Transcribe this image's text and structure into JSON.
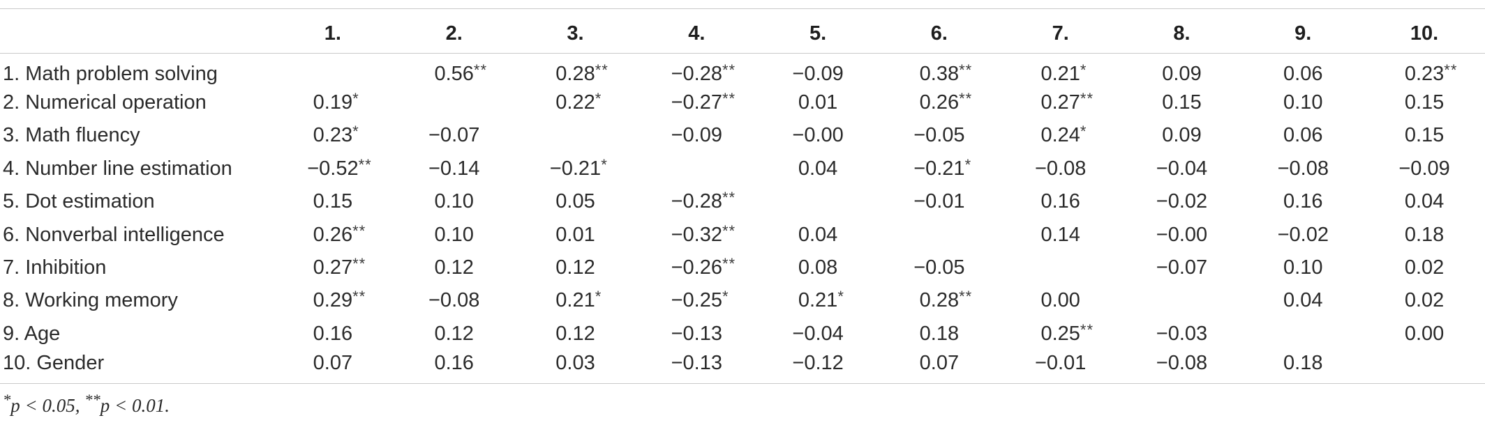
{
  "table": {
    "columns": [
      "1.",
      "2.",
      "3.",
      "4.",
      "5.",
      "6.",
      "7.",
      "8.",
      "9.",
      "10."
    ],
    "rows": [
      {
        "label": "1. Math problem solving",
        "cells": [
          {
            "v": "",
            "s": ""
          },
          {
            "v": "0.56",
            "s": "**"
          },
          {
            "v": "0.28",
            "s": "**"
          },
          {
            "v": "−0.28",
            "s": "**"
          },
          {
            "v": "−0.09",
            "s": ""
          },
          {
            "v": "0.38",
            "s": "**"
          },
          {
            "v": "0.21",
            "s": "*"
          },
          {
            "v": "0.09",
            "s": ""
          },
          {
            "v": "0.06",
            "s": ""
          },
          {
            "v": "0.23",
            "s": "**"
          }
        ]
      },
      {
        "label": "2. Numerical operation",
        "cells": [
          {
            "v": "0.19",
            "s": "*"
          },
          {
            "v": "",
            "s": ""
          },
          {
            "v": "0.22",
            "s": "*"
          },
          {
            "v": "−0.27",
            "s": "**"
          },
          {
            "v": "0.01",
            "s": ""
          },
          {
            "v": "0.26",
            "s": "**"
          },
          {
            "v": "0.27",
            "s": "**"
          },
          {
            "v": "0.15",
            "s": ""
          },
          {
            "v": "0.10",
            "s": ""
          },
          {
            "v": "0.15",
            "s": ""
          }
        ]
      },
      {
        "label": "3. Math fluency",
        "cells": [
          {
            "v": "0.23",
            "s": "*"
          },
          {
            "v": "−0.07",
            "s": ""
          },
          {
            "v": "",
            "s": ""
          },
          {
            "v": "−0.09",
            "s": ""
          },
          {
            "v": "−0.00",
            "s": ""
          },
          {
            "v": "−0.05",
            "s": ""
          },
          {
            "v": "0.24",
            "s": "*"
          },
          {
            "v": "0.09",
            "s": ""
          },
          {
            "v": "0.06",
            "s": ""
          },
          {
            "v": "0.15",
            "s": ""
          }
        ]
      },
      {
        "label": "4. Number line estimation",
        "cells": [
          {
            "v": "−0.52",
            "s": "**"
          },
          {
            "v": "−0.14",
            "s": ""
          },
          {
            "v": "−0.21",
            "s": "*"
          },
          {
            "v": "",
            "s": ""
          },
          {
            "v": "0.04",
            "s": ""
          },
          {
            "v": "−0.21",
            "s": "*"
          },
          {
            "v": "−0.08",
            "s": ""
          },
          {
            "v": "−0.04",
            "s": ""
          },
          {
            "v": "−0.08",
            "s": ""
          },
          {
            "v": "−0.09",
            "s": ""
          }
        ]
      },
      {
        "label": "5. Dot estimation",
        "cells": [
          {
            "v": "0.15",
            "s": ""
          },
          {
            "v": "0.10",
            "s": ""
          },
          {
            "v": "0.05",
            "s": ""
          },
          {
            "v": "−0.28",
            "s": "**"
          },
          {
            "v": "",
            "s": ""
          },
          {
            "v": "−0.01",
            "s": ""
          },
          {
            "v": "0.16",
            "s": ""
          },
          {
            "v": "−0.02",
            "s": ""
          },
          {
            "v": "0.16",
            "s": ""
          },
          {
            "v": "0.04",
            "s": ""
          }
        ]
      },
      {
        "label": "6. Nonverbal intelligence",
        "cells": [
          {
            "v": "0.26",
            "s": "**"
          },
          {
            "v": "0.10",
            "s": ""
          },
          {
            "v": "0.01",
            "s": ""
          },
          {
            "v": "−0.32",
            "s": "**"
          },
          {
            "v": "0.04",
            "s": ""
          },
          {
            "v": "",
            "s": ""
          },
          {
            "v": "0.14",
            "s": ""
          },
          {
            "v": "−0.00",
            "s": ""
          },
          {
            "v": "−0.02",
            "s": ""
          },
          {
            "v": "0.18",
            "s": ""
          }
        ]
      },
      {
        "label": "7. Inhibition",
        "cells": [
          {
            "v": "0.27",
            "s": "**"
          },
          {
            "v": "0.12",
            "s": ""
          },
          {
            "v": "0.12",
            "s": ""
          },
          {
            "v": "−0.26",
            "s": "**"
          },
          {
            "v": "0.08",
            "s": ""
          },
          {
            "v": "−0.05",
            "s": ""
          },
          {
            "v": "",
            "s": ""
          },
          {
            "v": "−0.07",
            "s": ""
          },
          {
            "v": "0.10",
            "s": ""
          },
          {
            "v": "0.02",
            "s": ""
          }
        ]
      },
      {
        "label": "8. Working memory",
        "cells": [
          {
            "v": "0.29",
            "s": "**"
          },
          {
            "v": "−0.08",
            "s": ""
          },
          {
            "v": "0.21",
            "s": "*"
          },
          {
            "v": "−0.25",
            "s": "*"
          },
          {
            "v": "0.21",
            "s": "*"
          },
          {
            "v": "0.28",
            "s": "**"
          },
          {
            "v": "0.00",
            "s": ""
          },
          {
            "v": "",
            "s": ""
          },
          {
            "v": "0.04",
            "s": ""
          },
          {
            "v": "0.02",
            "s": ""
          }
        ]
      },
      {
        "label": "9. Age",
        "cells": [
          {
            "v": "0.16",
            "s": ""
          },
          {
            "v": "0.12",
            "s": ""
          },
          {
            "v": "0.12",
            "s": ""
          },
          {
            "v": "−0.13",
            "s": ""
          },
          {
            "v": "−0.04",
            "s": ""
          },
          {
            "v": "0.18",
            "s": ""
          },
          {
            "v": "0.25",
            "s": "**"
          },
          {
            "v": "−0.03",
            "s": ""
          },
          {
            "v": "",
            "s": ""
          },
          {
            "v": "0.00",
            "s": ""
          }
        ]
      },
      {
        "label": "10. Gender",
        "cells": [
          {
            "v": "0.07",
            "s": ""
          },
          {
            "v": "0.16",
            "s": ""
          },
          {
            "v": "0.03",
            "s": ""
          },
          {
            "v": "−0.13",
            "s": ""
          },
          {
            "v": "−0.12",
            "s": ""
          },
          {
            "v": "0.07",
            "s": ""
          },
          {
            "v": "−0.01",
            "s": ""
          },
          {
            "v": "−0.08",
            "s": ""
          },
          {
            "v": "0.18",
            "s": ""
          },
          {
            "v": "",
            "s": ""
          }
        ]
      }
    ]
  },
  "footnote": {
    "star1": "*",
    "text1": "p < 0.05, ",
    "star2": "**",
    "text2": "p < 0.01."
  }
}
